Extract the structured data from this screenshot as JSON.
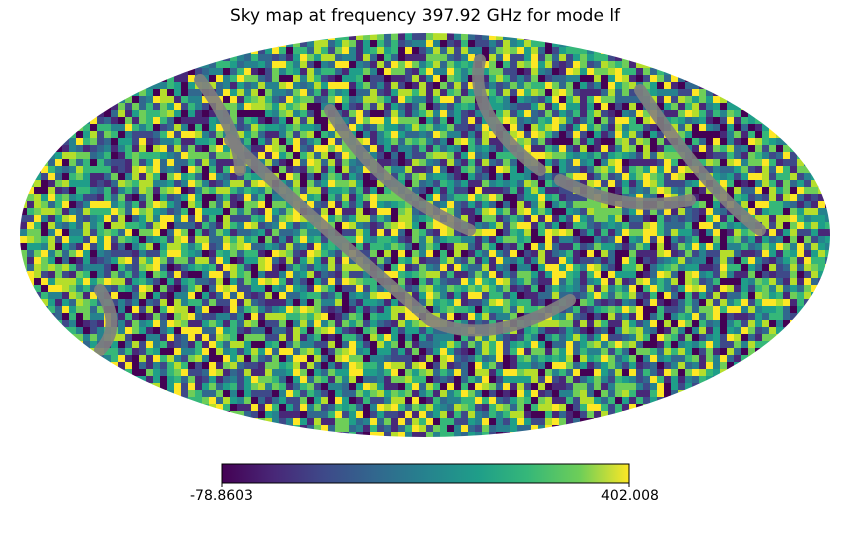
{
  "chart_data": {
    "type": "heatmap",
    "projection": "mollweide",
    "title": "Sky map at frequency 397.92 GHz for mode lf",
    "colormap": "viridis",
    "masked_color": "#808080",
    "colorbar": {
      "orientation": "horizontal",
      "min": -78.8603,
      "max": 402.008,
      "min_label": "-78.8603",
      "max_label": "402.008"
    }
  }
}
